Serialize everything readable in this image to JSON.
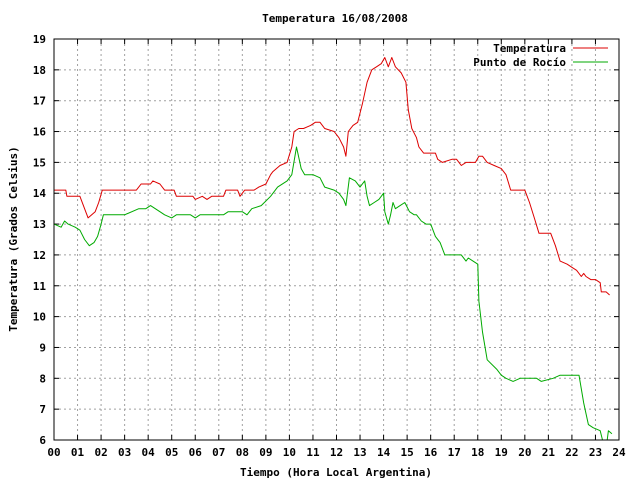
{
  "chart_data": {
    "type": "line",
    "title": "Temperatura 16/08/2008",
    "xlabel": "Tiempo (Hora Local Argentina)",
    "ylabel": "Temperatura (Grados Celsius)",
    "xlim": [
      0,
      24
    ],
    "ylim": [
      6,
      19
    ],
    "x_ticks": [
      "00",
      "01",
      "02",
      "03",
      "04",
      "05",
      "06",
      "07",
      "08",
      "09",
      "10",
      "11",
      "12",
      "13",
      "14",
      "15",
      "16",
      "17",
      "18",
      "19",
      "20",
      "21",
      "22",
      "23",
      "24"
    ],
    "y_ticks": [
      6,
      7,
      8,
      9,
      10,
      11,
      12,
      13,
      14,
      15,
      16,
      17,
      18,
      19
    ],
    "grid": true,
    "legend_position": "top-right",
    "series": [
      {
        "name": "Temperatura",
        "color": "#dd0000",
        "points": [
          [
            0,
            14.1
          ],
          [
            0.5,
            14.1
          ],
          [
            0.55,
            13.9
          ],
          [
            1.1,
            13.9
          ],
          [
            1.25,
            13.6
          ],
          [
            1.45,
            13.2
          ],
          [
            1.75,
            13.4
          ],
          [
            1.9,
            13.7
          ],
          [
            2.05,
            14.1
          ],
          [
            2.9,
            14.1
          ],
          [
            3.1,
            14.1
          ],
          [
            3.5,
            14.1
          ],
          [
            3.7,
            14.3
          ],
          [
            4.1,
            14.3
          ],
          [
            4.2,
            14.4
          ],
          [
            4.5,
            14.3
          ],
          [
            4.7,
            14.1
          ],
          [
            5.1,
            14.1
          ],
          [
            5.2,
            13.9
          ],
          [
            5.9,
            13.9
          ],
          [
            6.0,
            13.8
          ],
          [
            6.3,
            13.9
          ],
          [
            6.5,
            13.8
          ],
          [
            6.7,
            13.9
          ],
          [
            7.0,
            13.9
          ],
          [
            7.2,
            13.9
          ],
          [
            7.3,
            14.1
          ],
          [
            7.8,
            14.1
          ],
          [
            7.9,
            13.9
          ],
          [
            8.1,
            14.1
          ],
          [
            8.5,
            14.1
          ],
          [
            8.7,
            14.2
          ],
          [
            9.0,
            14.3
          ],
          [
            9.2,
            14.6
          ],
          [
            9.3,
            14.7
          ],
          [
            9.6,
            14.9
          ],
          [
            9.9,
            15.0
          ],
          [
            10.1,
            15.5
          ],
          [
            10.2,
            16.0
          ],
          [
            10.4,
            16.1
          ],
          [
            10.6,
            16.1
          ],
          [
            10.9,
            16.2
          ],
          [
            11.1,
            16.3
          ],
          [
            11.3,
            16.3
          ],
          [
            11.5,
            16.1
          ],
          [
            11.9,
            16.0
          ],
          [
            12.1,
            15.8
          ],
          [
            12.3,
            15.5
          ],
          [
            12.4,
            15.2
          ],
          [
            12.5,
            16.0
          ],
          [
            12.7,
            16.2
          ],
          [
            12.9,
            16.3
          ],
          [
            13.1,
            16.9
          ],
          [
            13.3,
            17.6
          ],
          [
            13.5,
            18.0
          ],
          [
            13.7,
            18.1
          ],
          [
            13.9,
            18.2
          ],
          [
            14.05,
            18.4
          ],
          [
            14.2,
            18.1
          ],
          [
            14.35,
            18.4
          ],
          [
            14.5,
            18.1
          ],
          [
            14.75,
            17.9
          ],
          [
            14.95,
            17.6
          ],
          [
            15.05,
            16.7
          ],
          [
            15.2,
            16.1
          ],
          [
            15.4,
            15.8
          ],
          [
            15.5,
            15.5
          ],
          [
            15.7,
            15.3
          ],
          [
            16.0,
            15.3
          ],
          [
            16.2,
            15.3
          ],
          [
            16.3,
            15.1
          ],
          [
            16.5,
            15.0
          ],
          [
            16.9,
            15.1
          ],
          [
            17.1,
            15.1
          ],
          [
            17.3,
            14.9
          ],
          [
            17.5,
            15.0
          ],
          [
            17.8,
            15.0
          ],
          [
            17.9,
            15.0
          ],
          [
            18.05,
            15.2
          ],
          [
            18.2,
            15.2
          ],
          [
            18.4,
            15.0
          ],
          [
            18.7,
            14.9
          ],
          [
            19.0,
            14.8
          ],
          [
            19.2,
            14.6
          ],
          [
            19.4,
            14.1
          ],
          [
            20.0,
            14.1
          ],
          [
            20.2,
            13.7
          ],
          [
            20.4,
            13.2
          ],
          [
            20.6,
            12.7
          ],
          [
            21.1,
            12.7
          ],
          [
            21.3,
            12.3
          ],
          [
            21.5,
            11.8
          ],
          [
            21.8,
            11.7
          ],
          [
            22.0,
            11.6
          ],
          [
            22.2,
            11.5
          ],
          [
            22.4,
            11.3
          ],
          [
            22.5,
            11.4
          ],
          [
            22.6,
            11.3
          ],
          [
            22.8,
            11.2
          ],
          [
            23.0,
            11.2
          ],
          [
            23.2,
            11.1
          ],
          [
            23.25,
            10.8
          ],
          [
            23.45,
            10.8
          ],
          [
            23.6,
            10.7
          ]
        ]
      },
      {
        "name": "Punto de Rocío",
        "color": "#00aa00",
        "points": [
          [
            0,
            13.0
          ],
          [
            0.3,
            12.9
          ],
          [
            0.45,
            13.1
          ],
          [
            0.6,
            13.0
          ],
          [
            0.9,
            12.9
          ],
          [
            1.1,
            12.8
          ],
          [
            1.3,
            12.5
          ],
          [
            1.5,
            12.3
          ],
          [
            1.7,
            12.4
          ],
          [
            1.85,
            12.6
          ],
          [
            2.0,
            13.0
          ],
          [
            2.1,
            13.3
          ],
          [
            3.0,
            13.3
          ],
          [
            3.6,
            13.5
          ],
          [
            3.9,
            13.5
          ],
          [
            4.1,
            13.6
          ],
          [
            4.5,
            13.4
          ],
          [
            4.7,
            13.3
          ],
          [
            5.0,
            13.2
          ],
          [
            5.2,
            13.3
          ],
          [
            5.8,
            13.3
          ],
          [
            6.0,
            13.2
          ],
          [
            6.2,
            13.3
          ],
          [
            6.6,
            13.3
          ],
          [
            7.0,
            13.3
          ],
          [
            7.2,
            13.3
          ],
          [
            7.4,
            13.4
          ],
          [
            8.0,
            13.4
          ],
          [
            8.2,
            13.3
          ],
          [
            8.4,
            13.5
          ],
          [
            8.8,
            13.6
          ],
          [
            9.2,
            13.9
          ],
          [
            9.5,
            14.2
          ],
          [
            9.9,
            14.4
          ],
          [
            10.1,
            14.6
          ],
          [
            10.3,
            15.5
          ],
          [
            10.5,
            14.8
          ],
          [
            10.65,
            14.6
          ],
          [
            11.0,
            14.6
          ],
          [
            11.3,
            14.5
          ],
          [
            11.5,
            14.2
          ],
          [
            11.9,
            14.1
          ],
          [
            12.1,
            14.0
          ],
          [
            12.3,
            13.8
          ],
          [
            12.4,
            13.6
          ],
          [
            12.55,
            14.5
          ],
          [
            12.8,
            14.4
          ],
          [
            13.0,
            14.2
          ],
          [
            13.2,
            14.4
          ],
          [
            13.3,
            13.9
          ],
          [
            13.4,
            13.6
          ],
          [
            13.6,
            13.7
          ],
          [
            13.8,
            13.8
          ],
          [
            14.0,
            14.0
          ],
          [
            14.05,
            13.4
          ],
          [
            14.2,
            13.0
          ],
          [
            14.3,
            13.3
          ],
          [
            14.4,
            13.7
          ],
          [
            14.5,
            13.5
          ],
          [
            14.7,
            13.6
          ],
          [
            14.9,
            13.7
          ],
          [
            15.1,
            13.4
          ],
          [
            15.3,
            13.3
          ],
          [
            15.4,
            13.3
          ],
          [
            15.6,
            13.1
          ],
          [
            15.8,
            13.0
          ],
          [
            16.0,
            13.0
          ],
          [
            16.2,
            12.6
          ],
          [
            16.4,
            12.4
          ],
          [
            16.6,
            12.0
          ],
          [
            17.3,
            12.0
          ],
          [
            17.5,
            11.8
          ],
          [
            17.6,
            11.9
          ],
          [
            17.8,
            11.8
          ],
          [
            18.0,
            11.7
          ],
          [
            18.05,
            10.5
          ],
          [
            18.2,
            9.5
          ],
          [
            18.4,
            8.6
          ],
          [
            18.8,
            8.3
          ],
          [
            19.0,
            8.1
          ],
          [
            19.2,
            8.0
          ],
          [
            19.5,
            7.9
          ],
          [
            19.8,
            8.0
          ],
          [
            20.5,
            8.0
          ],
          [
            20.7,
            7.9
          ],
          [
            21.2,
            8.0
          ],
          [
            21.5,
            8.1
          ],
          [
            22.0,
            8.1
          ],
          [
            22.3,
            8.1
          ],
          [
            22.5,
            7.2
          ],
          [
            22.7,
            6.5
          ],
          [
            22.9,
            6.4
          ],
          [
            23.2,
            6.3
          ],
          [
            23.3,
            6.0
          ],
          [
            23.5,
            6.0
          ],
          [
            23.55,
            6.3
          ],
          [
            23.7,
            6.2
          ]
        ]
      }
    ]
  }
}
